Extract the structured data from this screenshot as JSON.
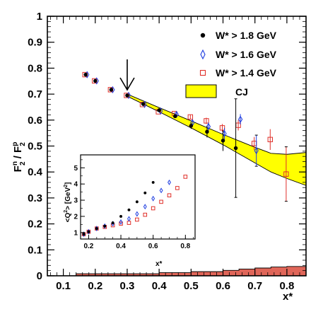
{
  "chart_data": [
    {
      "type": "scatter",
      "title": "",
      "xlabel": "x*",
      "ylabel_parts": [
        "F",
        "n",
        "2",
        " / F",
        "p",
        "2"
      ],
      "xlim": [
        0.05,
        0.86
      ],
      "ylim": [
        0,
        1
      ],
      "xticks": [
        0.1,
        0.2,
        0.3,
        0.4,
        0.5,
        0.6,
        0.7,
        0.8
      ],
      "yticks": [
        0,
        0.1,
        0.2,
        0.3,
        0.4,
        0.5,
        0.6,
        0.7,
        0.8,
        0.9,
        1
      ],
      "arrow_at_x": 0.3,
      "legend_placement": "top-right",
      "series": [
        {
          "name": "W* > 1.8 GeV",
          "marker": "filled-circle",
          "color": "#000000",
          "points": [
            {
              "x": 0.17,
              "y": 0.775,
              "err": 0
            },
            {
              "x": 0.2,
              "y": 0.751,
              "err": 0
            },
            {
              "x": 0.25,
              "y": 0.717,
              "err": 0
            },
            {
              "x": 0.3,
              "y": 0.695,
              "err": 0
            },
            {
              "x": 0.35,
              "y": 0.662,
              "err": 0
            },
            {
              "x": 0.4,
              "y": 0.638,
              "err": 0
            },
            {
              "x": 0.45,
              "y": 0.615,
              "err": 0.006
            },
            {
              "x": 0.5,
              "y": 0.578,
              "err": 0.012
            },
            {
              "x": 0.55,
              "y": 0.555,
              "err": 0.022
            },
            {
              "x": 0.6,
              "y": 0.521,
              "err": 0.04
            },
            {
              "x": 0.64,
              "y": 0.492,
              "err": 0.19
            }
          ]
        },
        {
          "name": "W* > 1.6 GeV",
          "marker": "open-diamond",
          "color": "#1e3de0",
          "points": [
            {
              "x": 0.17,
              "y": 0.775,
              "err": 0
            },
            {
              "x": 0.2,
              "y": 0.751,
              "err": 0
            },
            {
              "x": 0.25,
              "y": 0.717,
              "err": 0
            },
            {
              "x": 0.3,
              "y": 0.695,
              "err": 0
            },
            {
              "x": 0.35,
              "y": 0.66,
              "err": 0
            },
            {
              "x": 0.4,
              "y": 0.635,
              "err": 0
            },
            {
              "x": 0.45,
              "y": 0.622,
              "err": 0.007
            },
            {
              "x": 0.5,
              "y": 0.59,
              "err": 0.01
            },
            {
              "x": 0.55,
              "y": 0.575,
              "err": 0.016
            },
            {
              "x": 0.6,
              "y": 0.548,
              "err": 0.022
            },
            {
              "x": 0.65,
              "y": 0.603,
              "err": 0.02
            },
            {
              "x": 0.7,
              "y": 0.482,
              "err": 0.06
            }
          ]
        },
        {
          "name": "W* > 1.4 GeV",
          "marker": "open-square",
          "color": "#e0302a",
          "points": [
            {
              "x": 0.17,
              "y": 0.775,
              "err": 0
            },
            {
              "x": 0.2,
              "y": 0.751,
              "err": 0
            },
            {
              "x": 0.25,
              "y": 0.717,
              "err": 0
            },
            {
              "x": 0.3,
              "y": 0.695,
              "err": 0
            },
            {
              "x": 0.35,
              "y": 0.66,
              "err": 0
            },
            {
              "x": 0.4,
              "y": 0.632,
              "err": 0
            },
            {
              "x": 0.45,
              "y": 0.625,
              "err": 0.005
            },
            {
              "x": 0.5,
              "y": 0.612,
              "err": 0.008
            },
            {
              "x": 0.55,
              "y": 0.597,
              "err": 0.012
            },
            {
              "x": 0.6,
              "y": 0.57,
              "err": 0.015
            },
            {
              "x": 0.65,
              "y": 0.58,
              "err": 0.02
            },
            {
              "x": 0.7,
              "y": 0.51,
              "err": 0.025
            },
            {
              "x": 0.75,
              "y": 0.525,
              "err": 0.04
            },
            {
              "x": 0.8,
              "y": 0.392,
              "err": 0.105
            }
          ]
        }
      ],
      "band": {
        "name": "CJ",
        "color": "#ffff00",
        "upper": [
          [
            0.3,
            0.7
          ],
          [
            0.4,
            0.648
          ],
          [
            0.5,
            0.597
          ],
          [
            0.6,
            0.545
          ],
          [
            0.65,
            0.52
          ],
          [
            0.7,
            0.495
          ],
          [
            0.75,
            0.472
          ],
          [
            0.8,
            0.468
          ],
          [
            0.86,
            0.475
          ]
        ],
        "lower": [
          [
            0.3,
            0.692
          ],
          [
            0.4,
            0.632
          ],
          [
            0.5,
            0.57
          ],
          [
            0.6,
            0.505
          ],
          [
            0.65,
            0.47
          ],
          [
            0.7,
            0.435
          ],
          [
            0.75,
            0.4
          ],
          [
            0.8,
            0.375
          ],
          [
            0.86,
            0.348
          ]
        ]
      },
      "bottom_histogram": {
        "color": "#e06659",
        "bins": [
          {
            "x0": 0.14,
            "x1": 0.4,
            "y": 0.008
          },
          {
            "x0": 0.4,
            "x1": 0.5,
            "y": 0.012
          },
          {
            "x0": 0.5,
            "x1": 0.6,
            "y": 0.016
          },
          {
            "x0": 0.6,
            "x1": 0.65,
            "y": 0.021
          },
          {
            "x0": 0.65,
            "x1": 0.7,
            "y": 0.026
          },
          {
            "x0": 0.7,
            "x1": 0.75,
            "y": 0.03
          },
          {
            "x0": 0.75,
            "x1": 0.8,
            "y": 0.034
          },
          {
            "x0": 0.8,
            "x1": 0.86,
            "y": 0.036
          }
        ]
      }
    },
    {
      "type": "scatter",
      "title": "",
      "xlabel": "x*",
      "ylabel_parts": [
        "<Q",
        "2",
        "> [GeV",
        "2",
        "]"
      ],
      "xlim": [
        0.15,
        0.86
      ],
      "ylim": [
        0.6,
        5.8
      ],
      "xticks": [
        0.2,
        0.4,
        0.6,
        0.8
      ],
      "yticks": [
        1,
        2,
        3,
        4,
        5
      ],
      "series": [
        {
          "name": "W* > 1.8 GeV",
          "marker": "filled-circle",
          "color": "#000000",
          "points": [
            [
              0.17,
              0.9
            ],
            [
              0.2,
              1.05
            ],
            [
              0.25,
              1.25
            ],
            [
              0.3,
              1.4
            ],
            [
              0.35,
              1.6
            ],
            [
              0.4,
              2.0
            ],
            [
              0.45,
              2.4
            ],
            [
              0.5,
              2.9
            ],
            [
              0.55,
              3.45
            ],
            [
              0.6,
              4.1
            ]
          ]
        },
        {
          "name": "W* > 1.6 GeV",
          "marker": "open-diamond",
          "color": "#1e3de0",
          "points": [
            [
              0.17,
              0.9
            ],
            [
              0.2,
              1.05
            ],
            [
              0.25,
              1.25
            ],
            [
              0.3,
              1.4
            ],
            [
              0.35,
              1.55
            ],
            [
              0.4,
              1.65
            ],
            [
              0.45,
              1.85
            ],
            [
              0.5,
              2.15
            ],
            [
              0.55,
              2.6
            ],
            [
              0.6,
              3.1
            ],
            [
              0.65,
              3.6
            ],
            [
              0.7,
              4.1
            ]
          ]
        },
        {
          "name": "W* > 1.4 GeV",
          "marker": "open-square",
          "color": "#e0302a",
          "points": [
            [
              0.17,
              0.9
            ],
            [
              0.2,
              1.05
            ],
            [
              0.25,
              1.25
            ],
            [
              0.3,
              1.35
            ],
            [
              0.35,
              1.45
            ],
            [
              0.4,
              1.55
            ],
            [
              0.45,
              1.6
            ],
            [
              0.5,
              1.8
            ],
            [
              0.55,
              2.1
            ],
            [
              0.6,
              2.5
            ],
            [
              0.65,
              2.9
            ],
            [
              0.7,
              3.3
            ],
            [
              0.75,
              3.75
            ],
            [
              0.8,
              4.45
            ]
          ]
        }
      ]
    }
  ]
}
